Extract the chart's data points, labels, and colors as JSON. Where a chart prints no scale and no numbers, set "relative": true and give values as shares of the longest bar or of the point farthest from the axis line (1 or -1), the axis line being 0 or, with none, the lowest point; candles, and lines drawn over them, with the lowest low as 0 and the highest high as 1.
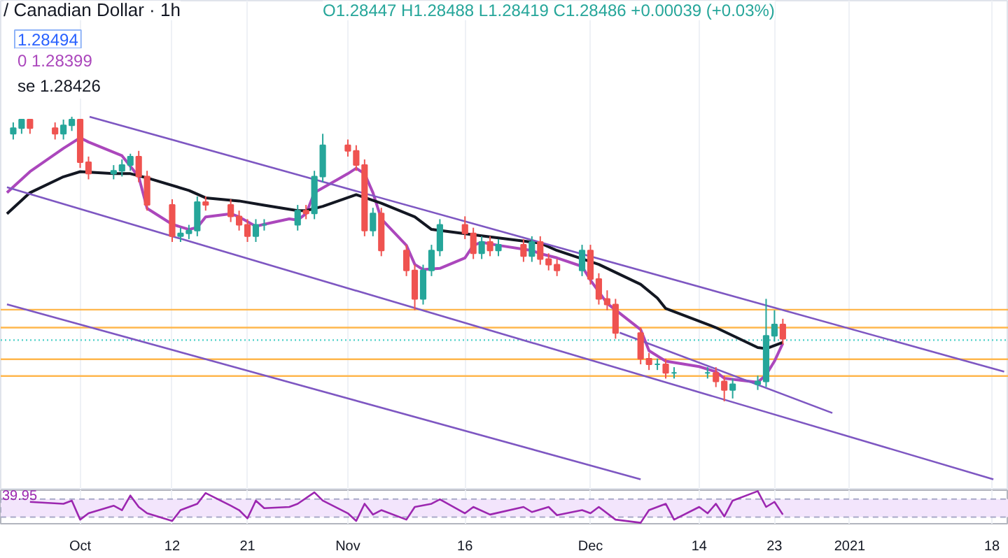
{
  "chart_data": [
    {
      "type": "candlestick",
      "title": "/ Canadian Dollar · 1h",
      "subtitle": "O1.28447 H1.28488 L1.28419 C1.28486 +0.00039 (+0.03%)",
      "annotations": [
        "1.28494"
      ],
      "relative": true,
      "legend": "top left",
      "grid": "x",
      "tick_labels": false,
      "xlim": [
        "2020-09-21T12:00",
        "2021-01-20"
      ],
      "xticks": [
        {
          "value": "2020-10-01",
          "label": null
        },
        {
          "value": "2020-10-12",
          "label": null
        },
        {
          "value": "2020-10-21",
          "label": null
        },
        {
          "value": "2020-11-02",
          "label": null
        },
        {
          "value": "2020-11-16",
          "label": null
        },
        {
          "value": "2020-12-01",
          "label": null
        },
        {
          "value": "2020-12-14",
          "label": null
        },
        {
          "value": "2020-12-23",
          "label": null
        },
        {
          "value": "2021-01-01",
          "label": null
        },
        {
          "value": "2021-01-18",
          "label": null
        }
      ],
      "x": [
        "2020-09-23",
        "2020-09-24",
        "2020-09-25",
        "2020-09-28",
        "2020-09-29",
        "2020-09-30",
        "2020-10-01",
        "2020-10-02",
        "2020-10-05",
        "2020-10-06",
        "2020-10-07",
        "2020-10-08",
        "2020-10-09",
        "2020-10-12",
        "2020-10-13",
        "2020-10-14",
        "2020-10-15",
        "2020-10-16",
        "2020-10-19",
        "2020-10-20",
        "2020-10-21",
        "2020-10-22",
        "2020-10-23",
        "2020-10-27",
        "2020-10-28",
        "2020-10-29",
        "2020-10-30",
        "2020-11-02",
        "2020-11-03",
        "2020-11-04",
        "2020-11-05",
        "2020-11-06",
        "2020-11-09",
        "2020-11-10",
        "2020-11-11",
        "2020-11-12",
        "2020-11-13",
        "2020-11-16",
        "2020-11-17",
        "2020-11-18",
        "2020-11-19",
        "2020-11-20",
        "2020-11-23",
        "2020-11-24",
        "2020-11-25",
        "2020-11-26",
        "2020-11-27",
        "2020-11-30",
        "2020-12-01",
        "2020-12-02",
        "2020-12-03",
        "2020-12-04",
        "2020-12-07",
        "2020-12-08",
        "2020-12-09",
        "2020-12-10",
        "2020-12-11",
        "2020-12-15",
        "2020-12-16",
        "2020-12-17",
        "2020-12-18",
        "2020-12-21",
        "2020-12-22",
        "2020-12-23",
        "2020-12-24"
      ],
      "ohlc": [
        [
          0.94,
          0.98,
          0.92,
          0.96
        ],
        [
          0.96,
          0.99,
          0.94,
          0.99
        ],
        [
          0.99,
          0.99,
          0.94,
          0.96
        ],
        [
          0.96,
          0.98,
          0.92,
          0.94
        ],
        [
          0.94,
          0.99,
          0.92,
          0.97
        ],
        [
          0.97,
          1.0,
          0.95,
          0.99
        ],
        [
          0.99,
          0.99,
          0.82,
          0.84
        ],
        [
          0.84,
          0.86,
          0.78,
          0.8
        ],
        [
          0.8,
          0.83,
          0.78,
          0.81
        ],
        [
          0.81,
          0.85,
          0.79,
          0.83
        ],
        [
          0.83,
          0.87,
          0.81,
          0.86
        ],
        [
          0.86,
          0.88,
          0.77,
          0.79
        ],
        [
          0.79,
          0.81,
          0.67,
          0.69
        ],
        [
          0.69,
          0.71,
          0.56,
          0.58
        ],
        [
          0.58,
          0.61,
          0.56,
          0.59
        ],
        [
          0.59,
          0.62,
          0.57,
          0.6
        ],
        [
          0.6,
          0.72,
          0.58,
          0.7
        ],
        [
          0.7,
          0.72,
          0.67,
          0.69
        ],
        [
          0.69,
          0.71,
          0.63,
          0.65
        ],
        [
          0.65,
          0.67,
          0.6,
          0.62
        ],
        [
          0.62,
          0.64,
          0.56,
          0.58
        ],
        [
          0.58,
          0.64,
          0.56,
          0.62
        ],
        [
          0.62,
          0.64,
          0.6,
          0.62
        ],
        [
          0.62,
          0.69,
          0.6,
          0.67
        ],
        [
          0.67,
          0.69,
          0.64,
          0.66
        ],
        [
          0.66,
          0.81,
          0.64,
          0.79
        ],
        [
          0.79,
          0.94,
          0.77,
          0.9
        ],
        [
          0.9,
          0.92,
          0.86,
          0.88
        ],
        [
          0.88,
          0.9,
          0.81,
          0.83
        ],
        [
          0.83,
          0.85,
          0.58,
          0.6
        ],
        [
          0.6,
          0.68,
          0.58,
          0.66
        ],
        [
          0.66,
          0.68,
          0.51,
          0.53
        ],
        [
          0.53,
          0.55,
          0.44,
          0.46
        ],
        [
          0.46,
          0.48,
          0.32,
          0.36
        ],
        [
          0.36,
          0.48,
          0.34,
          0.46
        ],
        [
          0.46,
          0.55,
          0.44,
          0.53
        ],
        [
          0.53,
          0.64,
          0.51,
          0.62
        ],
        [
          0.62,
          0.65,
          0.57,
          0.59
        ],
        [
          0.59,
          0.61,
          0.5,
          0.52
        ],
        [
          0.52,
          0.58,
          0.5,
          0.56
        ],
        [
          0.56,
          0.58,
          0.51,
          0.53
        ],
        [
          0.53,
          0.57,
          0.51,
          0.55
        ],
        [
          0.55,
          0.57,
          0.49,
          0.51
        ],
        [
          0.51,
          0.58,
          0.49,
          0.56
        ],
        [
          0.56,
          0.58,
          0.48,
          0.5
        ],
        [
          0.5,
          0.52,
          0.46,
          0.48
        ],
        [
          0.48,
          0.5,
          0.44,
          0.46
        ],
        [
          0.46,
          0.55,
          0.44,
          0.53
        ],
        [
          0.53,
          0.55,
          0.41,
          0.43
        ],
        [
          0.43,
          0.45,
          0.34,
          0.36
        ],
        [
          0.36,
          0.39,
          0.32,
          0.34
        ],
        [
          0.34,
          0.36,
          0.22,
          0.24
        ],
        [
          0.24,
          0.26,
          0.13,
          0.15
        ],
        [
          0.15,
          0.17,
          0.11,
          0.13
        ],
        [
          0.13,
          0.15,
          0.11,
          0.13
        ],
        [
          0.13,
          0.15,
          0.08,
          0.1
        ],
        [
          0.1,
          0.12,
          0.08,
          0.1
        ],
        [
          0.1,
          0.12,
          0.08,
          0.1
        ],
        [
          0.1,
          0.12,
          0.05,
          0.07
        ],
        [
          0.07,
          0.09,
          0.0,
          0.04
        ],
        [
          0.04,
          0.08,
          0.01,
          0.06
        ],
        [
          0.06,
          0.09,
          0.04,
          0.07
        ],
        [
          0.07,
          0.36,
          0.05,
          0.23
        ],
        [
          0.23,
          0.32,
          0.21,
          0.27
        ],
        [
          0.27,
          0.29,
          0.2,
          0.22
        ]
      ],
      "series": [
        {
          "type": "line",
          "name": "0 1.28399",
          "color": "#ab47bc",
          "x": [
            "2020-09-22T06:00",
            "2020-09-25",
            "2020-09-29",
            "2020-10-01",
            "2020-10-02",
            "2020-10-06",
            "2020-10-08",
            "2020-10-09",
            "2020-10-12",
            "2020-10-14",
            "2020-10-15",
            "2020-10-16",
            "2020-10-19",
            "2020-10-20",
            "2020-10-22",
            "2020-10-23",
            "2020-10-26",
            "2020-10-27",
            "2020-10-28",
            "2020-10-29",
            "2020-11-02",
            "2020-11-03",
            "2020-11-04",
            "2020-11-05",
            "2020-11-06",
            "2020-11-09",
            "2020-11-10",
            "2020-11-11",
            "2020-11-13",
            "2020-11-16",
            "2020-11-17",
            "2020-11-18",
            "2020-11-20",
            "2020-11-24",
            "2020-11-25",
            "2020-11-27",
            "2020-11-30",
            "2020-12-01",
            "2020-12-03",
            "2020-12-07",
            "2020-12-08",
            "2020-12-10",
            "2020-12-14",
            "2020-12-16",
            "2020-12-17",
            "2020-12-21",
            "2020-12-22",
            "2020-12-23",
            "2020-12-24"
          ],
          "values": [
            0.733,
            0.807,
            0.889,
            0.926,
            0.911,
            0.863,
            0.789,
            0.678,
            0.622,
            0.604,
            0.611,
            0.648,
            0.659,
            0.648,
            0.615,
            0.622,
            0.641,
            0.637,
            0.659,
            0.733,
            0.8,
            0.819,
            0.8,
            0.733,
            0.641,
            0.548,
            0.481,
            0.463,
            0.467,
            0.504,
            0.548,
            0.559,
            0.548,
            0.53,
            0.519,
            0.504,
            0.474,
            0.426,
            0.344,
            0.252,
            0.178,
            0.141,
            0.122,
            0.104,
            0.081,
            0.067,
            0.093,
            0.141,
            0.204
          ]
        },
        {
          "type": "line",
          "name": "se 1.28426",
          "color": "#131722",
          "x": [
            "2020-09-22T06:00",
            "2020-09-25",
            "2020-09-29",
            "2020-10-01",
            "2020-10-05",
            "2020-10-07",
            "2020-10-09",
            "2020-10-14",
            "2020-10-16",
            "2020-10-20",
            "2020-10-23",
            "2020-10-27",
            "2020-10-28",
            "2020-10-30",
            "2020-11-03",
            "2020-11-06",
            "2020-11-10",
            "2020-11-12",
            "2020-11-17",
            "2020-11-20",
            "2020-11-25",
            "2020-11-27",
            "2020-12-02",
            "2020-12-07",
            "2020-12-09",
            "2020-12-10",
            "2020-12-16",
            "2020-12-21",
            "2020-12-22",
            "2020-12-24"
          ],
          "values": [
            0.659,
            0.733,
            0.789,
            0.807,
            0.8,
            0.8,
            0.785,
            0.741,
            0.715,
            0.704,
            0.689,
            0.67,
            0.67,
            0.685,
            0.726,
            0.696,
            0.648,
            0.604,
            0.585,
            0.574,
            0.556,
            0.53,
            0.481,
            0.411,
            0.363,
            0.326,
            0.259,
            0.189,
            0.185,
            0.207
          ]
        },
        {
          "type": "line",
          "color": "#7e57c2",
          "x": [
            "2020-10-02T03:00",
            "2021-01-19T11:00"
          ],
          "values": [
            1.0,
            0.104
          ]
        },
        {
          "type": "line",
          "color": "#7e57c2",
          "x": [
            "2020-09-22T06:00",
            "2021-01-18T04:00"
          ],
          "values": [
            0.752,
            -0.274
          ]
        },
        {
          "type": "line",
          "color": "#7e57c2",
          "x": [
            "2020-09-22T06:00",
            "2020-12-07"
          ],
          "values": [
            0.341,
            -0.274
          ]
        },
        {
          "type": "line",
          "color": "#7e57c2",
          "x": [
            "2020-12-04T12:00",
            "2020-12-29T22:00"
          ],
          "values": [
            0.241,
            -0.041
          ]
        }
      ],
      "ref_lines": [
        {
          "axis": "y",
          "value": 0.322,
          "color": "#ffb74d"
        },
        {
          "axis": "y",
          "value": 0.259,
          "color": "#ffb74d"
        },
        {
          "axis": "y",
          "value": 0.148,
          "color": "#ffb74d"
        },
        {
          "axis": "y",
          "value": 0.089,
          "color": "#ffb74d"
        },
        {
          "axis": "y",
          "value": 0.215,
          "color": "#4dd0c8",
          "line_style": "dotted"
        }
      ]
    },
    {
      "type": "line",
      "relative": true,
      "grid": "x",
      "tick_labels": "x",
      "annotations": [
        "39.95"
      ],
      "xlim": [
        "2020-09-21T12:00",
        "2021-01-20"
      ],
      "xticks": [
        {
          "value": "2020-10-01",
          "label": "Oct"
        },
        {
          "value": "2020-10-12",
          "label": "12"
        },
        {
          "value": "2020-10-21",
          "label": "21"
        },
        {
          "value": "2020-11-02",
          "label": "Nov"
        },
        {
          "value": "2020-11-16",
          "label": "16"
        },
        {
          "value": "2020-12-01",
          "label": "Dec"
        },
        {
          "value": "2020-12-14",
          "label": "14"
        },
        {
          "value": "2020-12-23",
          "label": "23"
        },
        {
          "value": "2021-01-01",
          "label": "2021"
        },
        {
          "value": "2021-01-18",
          "label": "18"
        }
      ],
      "bands": [
        {
          "axis": "y",
          "from": 0.18,
          "to": 0.75,
          "color": "#f3e5fc"
        }
      ],
      "series": [
        {
          "color": "#9c27b0",
          "x": [
            "2020-09-25",
            "2020-09-29",
            "2020-09-30",
            "2020-10-01",
            "2020-10-02",
            "2020-10-05",
            "2020-10-06",
            "2020-10-07",
            "2020-10-08",
            "2020-10-09",
            "2020-10-12",
            "2020-10-13",
            "2020-10-15",
            "2020-10-16",
            "2020-10-19",
            "2020-10-20",
            "2020-10-21",
            "2020-10-22",
            "2020-10-23",
            "2020-10-26",
            "2020-10-27",
            "2020-10-29",
            "2020-10-30",
            "2020-11-02",
            "2020-11-03",
            "2020-11-04",
            "2020-11-05",
            "2020-11-06",
            "2020-11-09",
            "2020-11-10",
            "2020-11-12",
            "2020-11-13",
            "2020-11-16",
            "2020-11-17",
            "2020-11-19",
            "2020-11-23",
            "2020-11-24",
            "2020-11-26",
            "2020-11-27",
            "2020-11-30",
            "2020-12-01",
            "2020-12-02",
            "2020-12-04",
            "2020-12-07",
            "2020-12-08",
            "2020-12-09",
            "2020-12-10",
            "2020-12-11",
            "2020-12-14",
            "2020-12-15",
            "2020-12-16",
            "2020-12-17",
            "2020-12-18",
            "2020-12-21",
            "2020-12-22",
            "2020-12-23",
            "2020-12-24"
          ],
          "values": [
            0.66,
            0.6,
            0.7,
            0.1,
            0.3,
            0.54,
            0.4,
            0.86,
            0.5,
            0.3,
            0.06,
            0.4,
            0.6,
            0.94,
            0.54,
            0.4,
            0.14,
            0.7,
            0.46,
            0.5,
            0.6,
            0.96,
            0.7,
            0.3,
            0.06,
            0.6,
            0.26,
            0.4,
            0.1,
            0.5,
            0.6,
            0.74,
            0.3,
            0.5,
            0.26,
            0.5,
            0.34,
            0.5,
            0.24,
            0.4,
            0.3,
            0.5,
            0.1,
            0.0,
            0.4,
            0.5,
            0.6,
            0.1,
            0.5,
            0.3,
            0.6,
            0.2,
            0.7,
            1.0,
            0.5,
            0.66,
            0.26
          ]
        }
      ]
    }
  ]
}
